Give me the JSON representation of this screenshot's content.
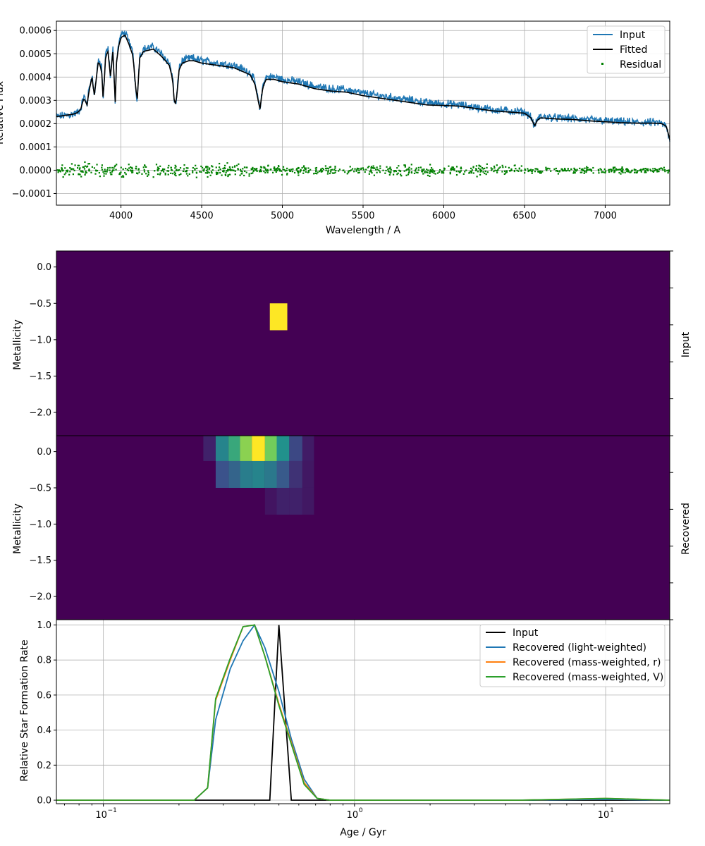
{
  "colors": {
    "input_spectrum": "#1f77b4",
    "fitted": "#000000",
    "residual": "#008000",
    "light": "#1f77b4",
    "mass_r": "#ff7f0e",
    "mass_v": "#2ca02c",
    "heat_bg": "#440154"
  },
  "chart_data": [
    {
      "id": "spectrum",
      "type": "line",
      "xlabel": "Wavelength / A",
      "ylabel": "Relative Flux",
      "xlim": [
        3600,
        7400
      ],
      "ylim": [
        -0.00015,
        0.00064
      ],
      "grid": true,
      "legend_placement": "top-right",
      "x_ticks": [
        4000,
        4500,
        5000,
        5500,
        6000,
        6500,
        7000
      ],
      "x_tick_labels": [
        "4000",
        "4500",
        "5000",
        "5500",
        "6000",
        "6500",
        "7000"
      ],
      "y_ticks": [
        -0.0001,
        0.0,
        0.0001,
        0.0002,
        0.0003,
        0.0004,
        0.0005,
        0.0006
      ],
      "y_tick_labels": [
        "−0.0001",
        "0.0000",
        "0.0001",
        "0.0002",
        "0.0003",
        "0.0004",
        "0.0005",
        "0.0006"
      ],
      "series": [
        {
          "name": "Input",
          "kind": "line",
          "x": [
            3600,
            3650,
            3700,
            3725,
            3750,
            3770,
            3790,
            3800,
            3820,
            3835,
            3860,
            3880,
            3890,
            3905,
            3920,
            3935,
            3950,
            3965,
            3970,
            3985,
            4000,
            4025,
            4050,
            4075,
            4090,
            4101,
            4115,
            4140,
            4200,
            4250,
            4300,
            4320,
            4330,
            4340,
            4350,
            4360,
            4380,
            4420,
            4450,
            4500,
            4600,
            4700,
            4800,
            4830,
            4850,
            4861,
            4870,
            4880,
            4900,
            4950,
            5000,
            5100,
            5200,
            5300,
            5400,
            5500,
            5600,
            5700,
            5800,
            5900,
            6000,
            6100,
            6200,
            6300,
            6400,
            6500,
            6540,
            6563,
            6580,
            6600,
            6700,
            6800,
            6900,
            7000,
            7100,
            7200,
            7300,
            7350,
            7380,
            7400
          ],
          "y": [
            0.00023,
            0.000235,
            0.00024,
            0.000245,
            0.00026,
            0.00032,
            0.00028,
            0.00034,
            0.00041,
            0.00032,
            0.00048,
            0.00044,
            0.0003,
            0.0005,
            0.00052,
            0.0004,
            0.00052,
            0.00028,
            0.00045,
            0.00054,
            0.00058,
            0.00059,
            0.00055,
            0.0005,
            0.00036,
            0.0003,
            0.00049,
            0.00052,
            0.00053,
            0.0005,
            0.00046,
            0.0004,
            0.0003,
            0.00028,
            0.00035,
            0.00044,
            0.00047,
            0.00048,
            0.00048,
            0.00047,
            0.00046,
            0.00045,
            0.00042,
            0.00038,
            0.0003,
            0.00026,
            0.00031,
            0.00037,
            0.0004,
            0.0004,
            0.00039,
            0.00038,
            0.00036,
            0.00035,
            0.000345,
            0.00033,
            0.00032,
            0.00031,
            0.0003,
            0.00029,
            0.000285,
            0.00028,
            0.00027,
            0.00026,
            0.000255,
            0.00025,
            0.00023,
            0.000185,
            0.00022,
            0.00023,
            0.000225,
            0.000222,
            0.000215,
            0.000212,
            0.000208,
            0.000205,
            0.000205,
            0.000202,
            0.000185,
            0.00012
          ]
        },
        {
          "name": "Fitted",
          "kind": "line",
          "same_x_as_input": true,
          "y": [
            0.00023,
            0.000235,
            0.00024,
            0.000245,
            0.00026,
            0.00031,
            0.00028,
            0.00033,
            0.0004,
            0.00032,
            0.00047,
            0.00043,
            0.0003,
            0.00049,
            0.00051,
            0.0004,
            0.00051,
            0.00029,
            0.00045,
            0.00053,
            0.00057,
            0.00058,
            0.00054,
            0.00049,
            0.00036,
            0.0003,
            0.00048,
            0.00051,
            0.00052,
            0.00049,
            0.00045,
            0.00039,
            0.0003,
            0.00028,
            0.00035,
            0.00043,
            0.00046,
            0.00047,
            0.00047,
            0.00046,
            0.00045,
            0.00044,
            0.00041,
            0.00037,
            0.0003,
            0.00026,
            0.00031,
            0.00036,
            0.00039,
            0.00039,
            0.00038,
            0.00037,
            0.00035,
            0.00034,
            0.000335,
            0.00032,
            0.00031,
            0.0003,
            0.00029,
            0.00028,
            0.000278,
            0.000275,
            0.000265,
            0.000255,
            0.00025,
            0.000245,
            0.000225,
            0.00019,
            0.000215,
            0.000225,
            0.00022,
            0.000218,
            0.000212,
            0.000208,
            0.000204,
            0.000202,
            0.000202,
            0.0002,
            0.000188,
            0.00013
          ]
        },
        {
          "name": "Residual",
          "kind": "scatter",
          "center": 0.0,
          "spread": 2e-05
        }
      ]
    },
    {
      "id": "input_map",
      "type": "heatmap",
      "ylabel": "Metallicity",
      "side_label": "Input",
      "ylim": [
        -2.32,
        0.22
      ],
      "y_ticks": [
        0.0,
        -0.5,
        -1.0,
        -1.5,
        -2.0
      ],
      "y_tick_labels": [
        "0.0",
        "−0.5",
        "−1.0",
        "−1.5",
        "−2.0"
      ],
      "age_range_gyr": [
        0.065,
        18
      ],
      "cells": [
        {
          "age_lo": 0.46,
          "age_hi": 0.54,
          "z_lo": -0.87,
          "z_hi": -0.5,
          "value": 1.0
        }
      ]
    },
    {
      "id": "recovered_map",
      "type": "heatmap",
      "ylabel": "Metallicity",
      "side_label": "Recovered",
      "ylim": [
        -2.32,
        0.22
      ],
      "y_ticks": [
        0.0,
        -0.5,
        -1.0,
        -1.5,
        -2.0
      ],
      "y_tick_labels": [
        "0.0",
        "−0.5",
        "−1.0",
        "−1.5",
        "−2.0"
      ],
      "age_range_gyr": [
        0.065,
        18
      ],
      "cells": [
        {
          "age_lo": 0.25,
          "age_hi": 0.28,
          "z_lo": -0.13,
          "z_hi": 0.22,
          "value": 0.1
        },
        {
          "age_lo": 0.28,
          "age_hi": 0.315,
          "z_lo": -0.13,
          "z_hi": 0.22,
          "value": 0.45
        },
        {
          "age_lo": 0.315,
          "age_hi": 0.35,
          "z_lo": -0.13,
          "z_hi": 0.22,
          "value": 0.6
        },
        {
          "age_lo": 0.35,
          "age_hi": 0.39,
          "z_lo": -0.13,
          "z_hi": 0.22,
          "value": 0.82
        },
        {
          "age_lo": 0.39,
          "age_hi": 0.44,
          "z_lo": -0.13,
          "z_hi": 0.22,
          "value": 1.0
        },
        {
          "age_lo": 0.44,
          "age_hi": 0.49,
          "z_lo": -0.13,
          "z_hi": 0.22,
          "value": 0.78
        },
        {
          "age_lo": 0.49,
          "age_hi": 0.55,
          "z_lo": -0.13,
          "z_hi": 0.22,
          "value": 0.5
        },
        {
          "age_lo": 0.55,
          "age_hi": 0.62,
          "z_lo": -0.13,
          "z_hi": 0.22,
          "value": 0.22
        },
        {
          "age_lo": 0.62,
          "age_hi": 0.69,
          "z_lo": -0.13,
          "z_hi": 0.22,
          "value": 0.08
        },
        {
          "age_lo": 0.28,
          "age_hi": 0.315,
          "z_lo": -0.5,
          "z_hi": -0.13,
          "value": 0.25
        },
        {
          "age_lo": 0.315,
          "age_hi": 0.35,
          "z_lo": -0.5,
          "z_hi": -0.13,
          "value": 0.32
        },
        {
          "age_lo": 0.35,
          "age_hi": 0.39,
          "z_lo": -0.5,
          "z_hi": -0.13,
          "value": 0.42
        },
        {
          "age_lo": 0.39,
          "age_hi": 0.44,
          "z_lo": -0.5,
          "z_hi": -0.13,
          "value": 0.45
        },
        {
          "age_lo": 0.44,
          "age_hi": 0.49,
          "z_lo": -0.5,
          "z_hi": -0.13,
          "value": 0.4
        },
        {
          "age_lo": 0.49,
          "age_hi": 0.55,
          "z_lo": -0.5,
          "z_hi": -0.13,
          "value": 0.28
        },
        {
          "age_lo": 0.55,
          "age_hi": 0.62,
          "z_lo": -0.5,
          "z_hi": -0.13,
          "value": 0.15
        },
        {
          "age_lo": 0.62,
          "age_hi": 0.69,
          "z_lo": -0.5,
          "z_hi": -0.13,
          "value": 0.07
        },
        {
          "age_lo": 0.44,
          "age_hi": 0.49,
          "z_lo": -0.87,
          "z_hi": -0.5,
          "value": 0.06
        },
        {
          "age_lo": 0.49,
          "age_hi": 0.55,
          "z_lo": -0.87,
          "z_hi": -0.5,
          "value": 0.1
        },
        {
          "age_lo": 0.55,
          "age_hi": 0.62,
          "z_lo": -0.87,
          "z_hi": -0.5,
          "value": 0.1
        },
        {
          "age_lo": 0.62,
          "age_hi": 0.69,
          "z_lo": -0.87,
          "z_hi": -0.5,
          "value": 0.07
        }
      ]
    },
    {
      "id": "sfr",
      "type": "line",
      "xlabel": "Age / Gyr",
      "ylabel": "Relative Star Formation Rate",
      "xscale": "log",
      "xlim": [
        0.065,
        18
      ],
      "ylim": [
        -0.02,
        1.03
      ],
      "grid": true,
      "legend_placement": "top-right",
      "x_ticks": [
        0.1,
        1,
        10
      ],
      "x_tick_labels": [
        "10",
        "10",
        "10"
      ],
      "x_tick_exponents": [
        "−1",
        "0",
        "1"
      ],
      "y_ticks": [
        0.0,
        0.2,
        0.4,
        0.6,
        0.8,
        1.0
      ],
      "y_tick_labels": [
        "0.0",
        "0.2",
        "0.4",
        "0.6",
        "0.8",
        "1.0"
      ],
      "series": [
        {
          "name": "Input",
          "x": [
            0.065,
            0.46,
            0.5,
            0.56,
            18
          ],
          "y": [
            0,
            0,
            1.0,
            0,
            0
          ]
        },
        {
          "name": "Recovered (light-weighted)",
          "x": [
            0.065,
            0.23,
            0.26,
            0.28,
            0.32,
            0.36,
            0.4,
            0.44,
            0.5,
            0.56,
            0.63,
            0.71,
            0.8,
            4.5,
            10,
            18
          ],
          "y": [
            0,
            0,
            0.07,
            0.46,
            0.75,
            0.91,
            1.0,
            0.87,
            0.62,
            0.35,
            0.12,
            0.01,
            0,
            0,
            0.005,
            0
          ]
        },
        {
          "name": "Recovered (mass-weighted, r)",
          "x": [
            0.065,
            0.23,
            0.26,
            0.28,
            0.32,
            0.36,
            0.4,
            0.44,
            0.5,
            0.56,
            0.63,
            0.71,
            0.8,
            4.5,
            10,
            18
          ],
          "y": [
            0,
            0,
            0.07,
            0.57,
            0.8,
            0.99,
            1.0,
            0.82,
            0.55,
            0.33,
            0.1,
            0.01,
            0,
            0,
            0.01,
            0
          ]
        },
        {
          "name": "Recovered (mass-weighted, V)",
          "x": [
            0.065,
            0.23,
            0.26,
            0.28,
            0.32,
            0.36,
            0.4,
            0.44,
            0.5,
            0.56,
            0.63,
            0.71,
            0.8,
            4.5,
            10,
            18
          ],
          "y": [
            0,
            0,
            0.07,
            0.58,
            0.81,
            0.99,
            1.0,
            0.82,
            0.54,
            0.32,
            0.09,
            0.01,
            0,
            0,
            0.01,
            0
          ]
        }
      ]
    }
  ]
}
